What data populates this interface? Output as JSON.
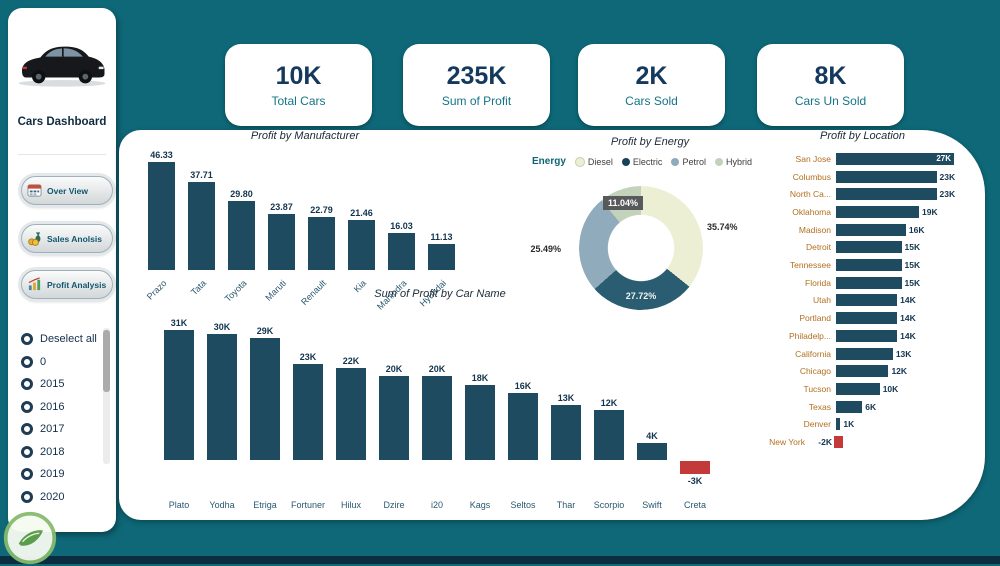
{
  "app": {
    "title": "Cars Dashboard"
  },
  "colors": {
    "background": "#0E6878",
    "bar": "#1E4B60",
    "negative": "#C43A3A",
    "location_label": "#B26F1F",
    "kpi_value": "#14395C",
    "kpi_label": "#147489"
  },
  "sidebar": {
    "title": "Cars Dashboard",
    "nav": [
      {
        "label": "Over View"
      },
      {
        "label": "Sales Anolsis"
      },
      {
        "label": "Profit Analysis"
      }
    ],
    "filters": [
      "Deselect all",
      "0",
      "2015",
      "2016",
      "2017",
      "2018",
      "2019",
      "2020"
    ]
  },
  "kpis": [
    {
      "value": "10K",
      "label": "Total Cars"
    },
    {
      "value": "235K",
      "label": "Sum of Profit"
    },
    {
      "value": "2K",
      "label": "Cars Sold"
    },
    {
      "value": "8K",
      "label": "Cars Un Sold"
    }
  ],
  "chart_data": {
    "manufacturer": {
      "type": "bar",
      "title": "Profit by Manufacturer",
      "categories": [
        "Prazo",
        "Tata",
        "Toyota",
        "Maruti",
        "Renault",
        "Kia",
        "Mahindra",
        "Hyundai"
      ],
      "values": [
        46.33,
        37.71,
        29.8,
        23.87,
        22.79,
        21.46,
        16.03,
        11.13
      ],
      "labels": [
        "46.33",
        "37.71",
        "29.80",
        "23.87",
        "22.79",
        "21.46",
        "16.03",
        "11.13"
      ],
      "ylim": [
        0,
        50
      ]
    },
    "car_name": {
      "type": "bar",
      "title": "Sum of Profit by Car Name",
      "categories": [
        "Plato",
        "Yodha",
        "Etriga",
        "Fortuner",
        "Hilux",
        "Dzire",
        "i20",
        "Kags",
        "Seltos",
        "Thar",
        "Scorpio",
        "Swift",
        "Creta"
      ],
      "values": [
        31,
        30,
        29,
        23,
        22,
        20,
        20,
        18,
        16,
        13,
        12,
        4,
        -3
      ],
      "labels": [
        "31K",
        "30K",
        "29K",
        "23K",
        "22K",
        "20K",
        "20K",
        "18K",
        "16K",
        "13K",
        "12K",
        "4K",
        "-3K"
      ],
      "ylim": [
        -3,
        31
      ]
    },
    "energy": {
      "type": "pie",
      "title": "Profit by Energy",
      "legend_title": "Energy",
      "slices": [
        {
          "name": "Diesel",
          "value": 35.74,
          "label": "35.74%",
          "color": "#ECEFD3"
        },
        {
          "name": "Electric",
          "value": 27.72,
          "label": "27.72%",
          "color": "#2B5D72"
        },
        {
          "name": "Petrol",
          "value": 25.49,
          "label": "25.49%",
          "color": "#8FABBC"
        },
        {
          "name": "Hybrid",
          "value": 11.04,
          "label": "11.04%",
          "color": "#C3D2BA"
        }
      ]
    },
    "location": {
      "type": "bar-horizontal",
      "title": "Profit by Location",
      "categories": [
        "San Jose",
        "Columbus",
        "North Ca...",
        "Oklahoma",
        "Madison",
        "Detroit",
        "Tennessee",
        "Florida",
        "Utah",
        "Portland",
        "Philadelp...",
        "California",
        "Chicago",
        "Tucson",
        "Texas",
        "Denver",
        "New York"
      ],
      "values": [
        27,
        23,
        23,
        19,
        16,
        15,
        15,
        15,
        14,
        14,
        14,
        13,
        12,
        10,
        6,
        1,
        -2
      ],
      "labels": [
        "27K",
        "23K",
        "23K",
        "19K",
        "16K",
        "15K",
        "15K",
        "15K",
        "14K",
        "14K",
        "14K",
        "13K",
        "12K",
        "10K",
        "6K",
        "1K",
        "-2K"
      ],
      "xlim": [
        -2,
        27
      ]
    }
  }
}
